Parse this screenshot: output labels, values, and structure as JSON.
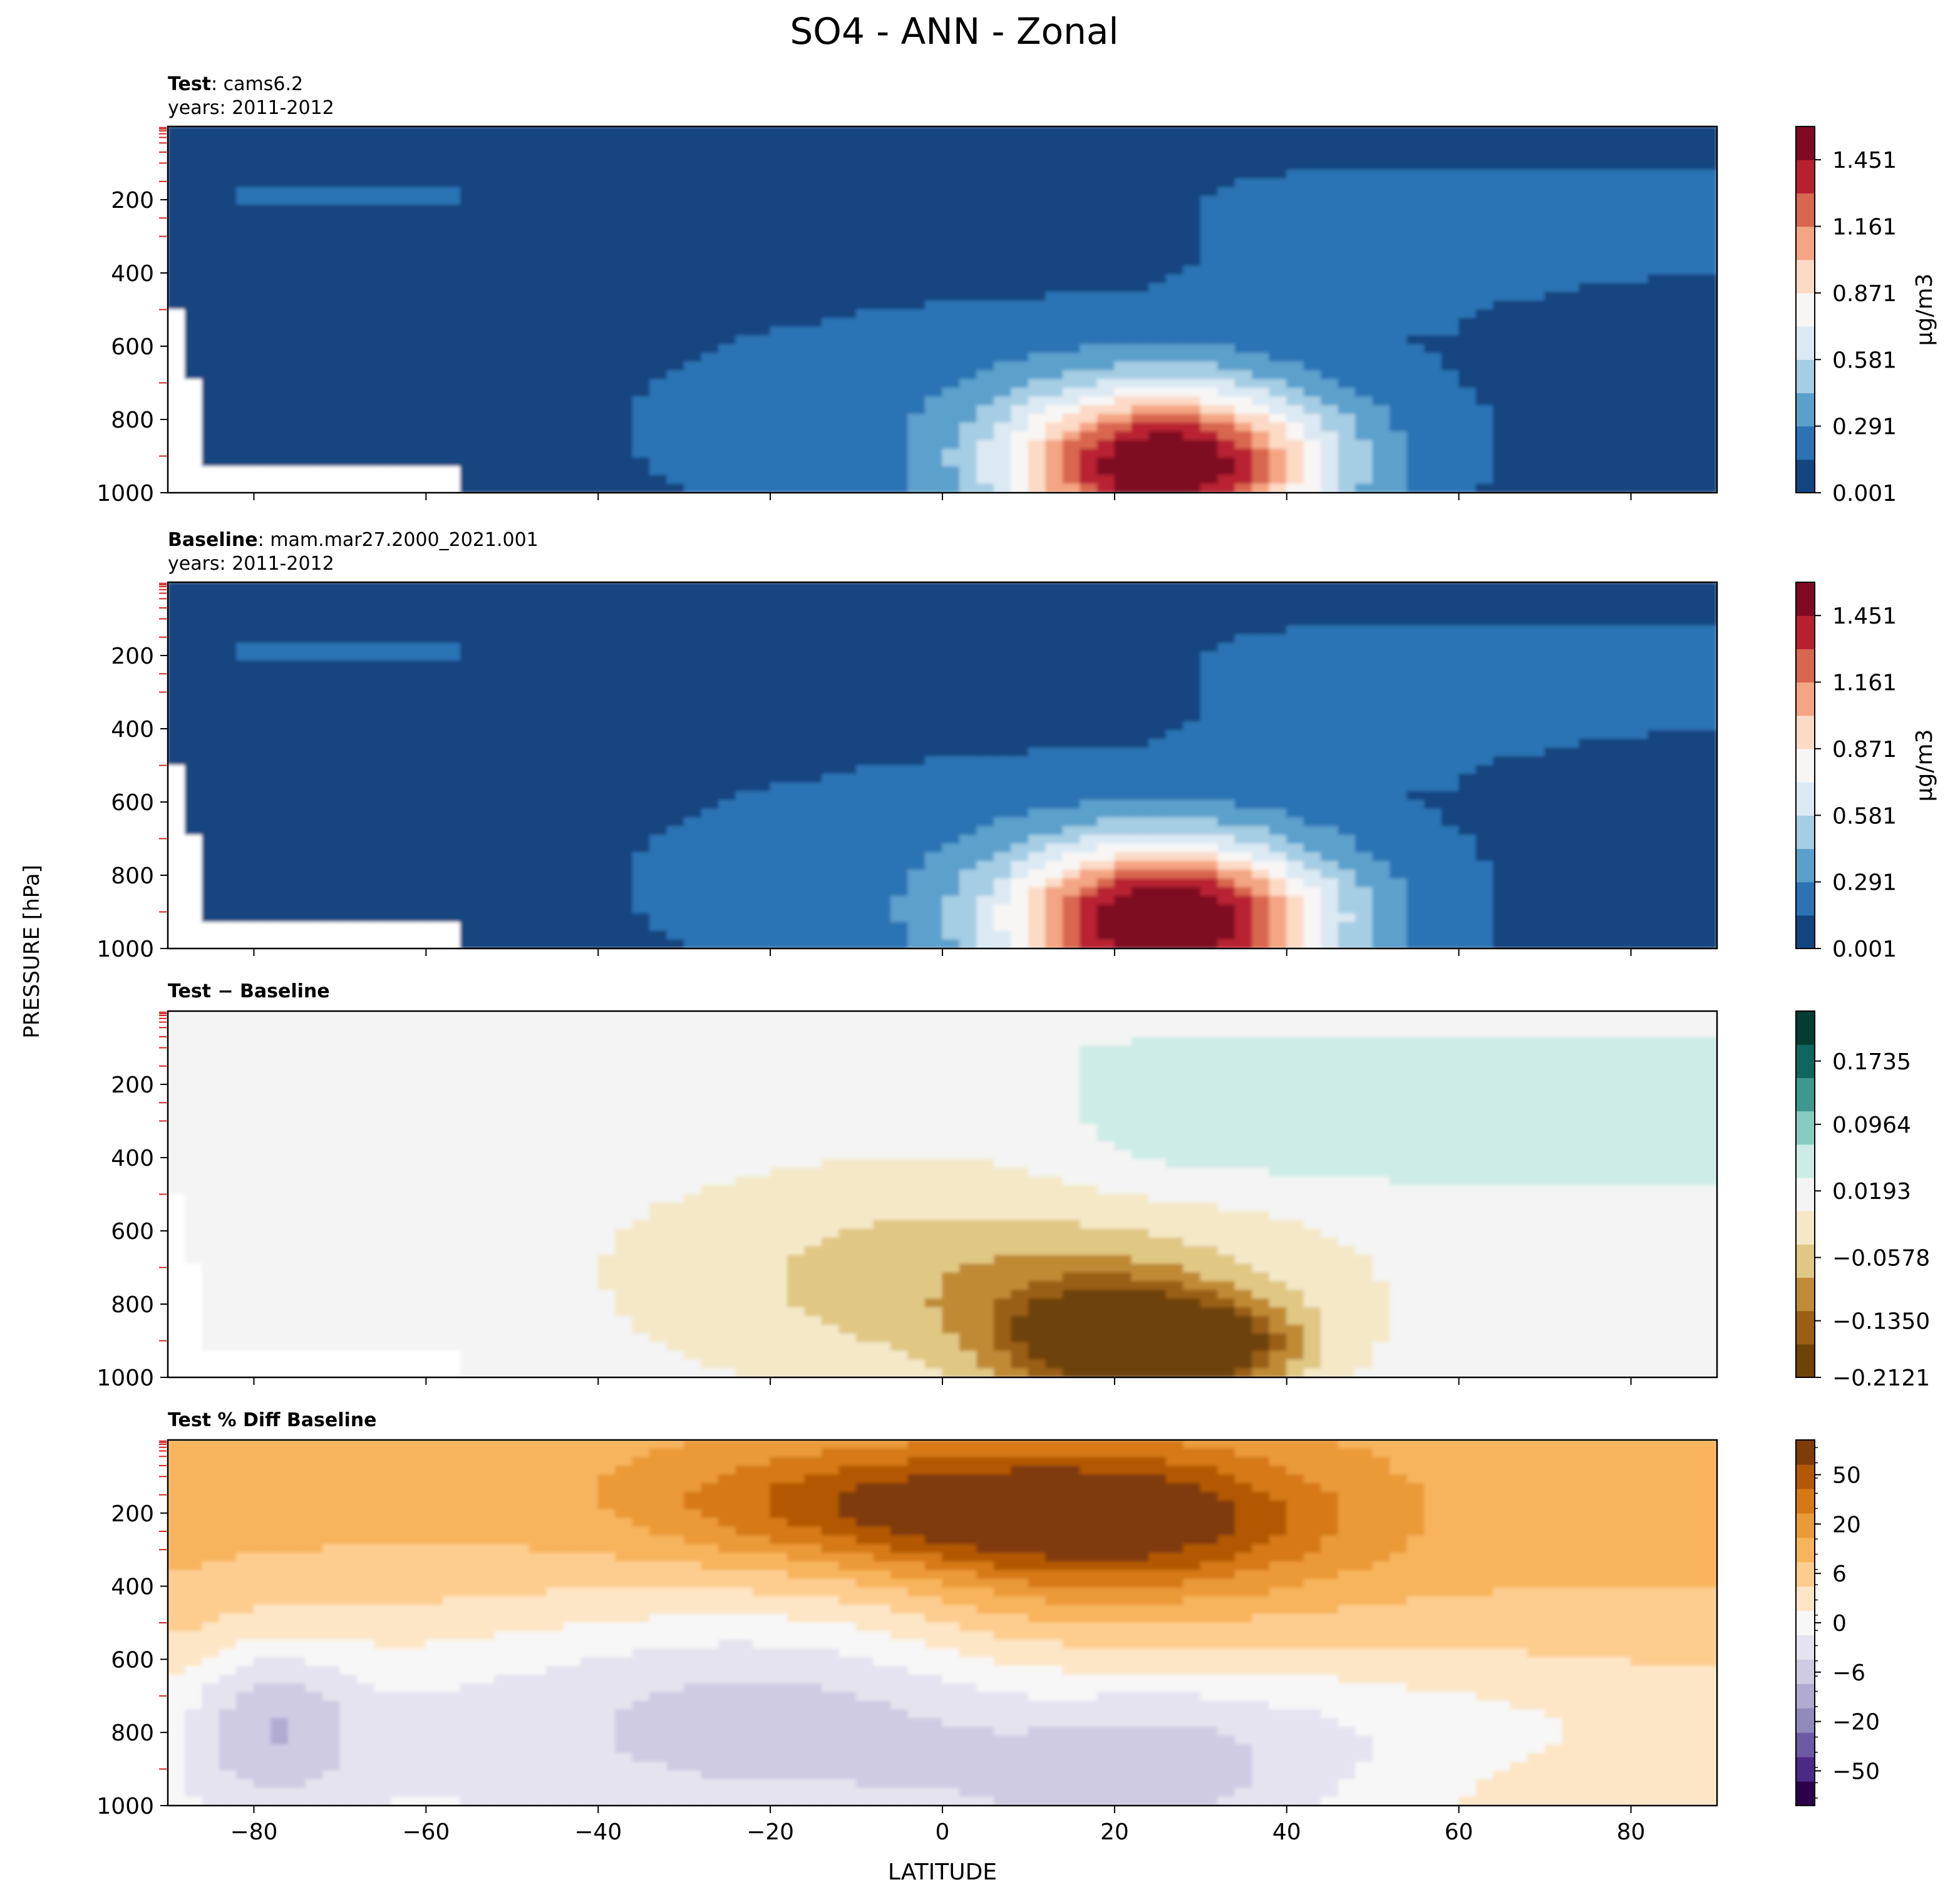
{
  "figure": {
    "title": "SO4 - ANN - Zonal",
    "xlabel": "LATITUDE",
    "ylabel": "PRESSURE [hPa]"
  },
  "panels": [
    {
      "id": "test",
      "title_bold": "Test",
      "title_rest": ": cams6.2",
      "subtitle": "years: 2011-2012",
      "colorbar_label": "μg/m3",
      "colorbar_ticks": [
        "1.451",
        "1.161",
        "0.871",
        "0.581",
        "0.291",
        "0.001"
      ],
      "colormap": "RdBu_r",
      "colors": [
        "#124580",
        "#2c73b4",
        "#5ba0cc",
        "#a5cde3",
        "#dbe9f3",
        "#f8f6f5",
        "#fcdac6",
        "#f4a583",
        "#d9664f",
        "#b82030",
        "#7f0a24"
      ]
    },
    {
      "id": "baseline",
      "title_bold": "Baseline",
      "title_rest": ": mam.mar27.2000_2021.001",
      "subtitle": "years: 2011-2012",
      "colorbar_label": "μg/m3",
      "colorbar_ticks": [
        "1.451",
        "1.161",
        "0.871",
        "0.581",
        "0.291",
        "0.001"
      ],
      "colormap": "RdBu_r",
      "colors": [
        "#124580",
        "#2c73b4",
        "#5ba0cc",
        "#a5cde3",
        "#dbe9f3",
        "#f8f6f5",
        "#fcdac6",
        "#f4a583",
        "#d9664f",
        "#b82030",
        "#7f0a24"
      ]
    },
    {
      "id": "diff",
      "title_bold": "Test − Baseline",
      "title_rest": "",
      "subtitle": "",
      "colorbar_label": "",
      "colorbar_ticks": [
        "0.1735",
        "0.0964",
        "0.0193",
        "−0.0578",
        "−0.1350",
        "−0.2121"
      ],
      "colormap": "BrBG",
      "colors": [
        "#6e4308",
        "#9a5f13",
        "#c08a36",
        "#e0c784",
        "#f4e8c7",
        "#f3f4f3",
        "#cdece6",
        "#86cdc0",
        "#3e988f",
        "#10665f",
        "#033d31"
      ]
    },
    {
      "id": "pctdiff",
      "title_bold": "Test % Diff Baseline",
      "title_rest": "",
      "subtitle": "",
      "colorbar_label": "",
      "colorbar_ticks": [
        "50",
        "20",
        "6",
        "0",
        "−6",
        "−20",
        "−50"
      ],
      "colormap": "PuOr_r",
      "colors": [
        "#2d004b",
        "#4b2a86",
        "#6d5aa4",
        "#9089bb",
        "#b1aad1",
        "#cfcbe3",
        "#e4e3ef",
        "#f7f7f7",
        "#fde6c6",
        "#fdcd90",
        "#f8b45c",
        "#eb9a38",
        "#d67915",
        "#b35806",
        "#7f3b08"
      ]
    }
  ],
  "chart_data": {
    "type": "contour",
    "x": {
      "label": "LATITUDE",
      "range": [
        -90,
        90
      ],
      "ticks": [
        "−80",
        "−60",
        "−40",
        "−20",
        "0",
        "20",
        "40",
        "60",
        "80"
      ]
    },
    "y": {
      "label": "PRESSURE [hPa]",
      "range": [
        1000,
        0
      ],
      "ticks": [
        "200",
        "400",
        "600",
        "800",
        "1000"
      ]
    },
    "fields": {
      "test": {
        "peak": {
          "lat": 25,
          "p": 920,
          "value": 1.52
        },
        "levels": [
          0.001,
          0.146,
          0.291,
          0.436,
          0.581,
          0.726,
          0.871,
          1.016,
          1.161,
          1.306,
          1.451,
          1.596
        ]
      },
      "baseline": {
        "peak": {
          "lat": 25,
          "p": 920,
          "value": 1.6
        },
        "levels": [
          0.001,
          0.146,
          0.291,
          0.436,
          0.581,
          0.726,
          0.871,
          1.016,
          1.161,
          1.306,
          1.451,
          1.596
        ]
      },
      "diff": {
        "range": [
          -0.2121,
          0.2121
        ],
        "min": {
          "lat": 20,
          "p": 900,
          "value": -0.19
        },
        "max_region": {
          "lat": [
            12,
            90
          ],
          "p": [
            100,
            550
          ],
          "value": 0.04
        }
      },
      "pctdiff": {
        "range": [
          -70,
          70
        ],
        "max_region": {
          "lat": 20,
          "p": 220,
          "value": 35
        },
        "min_region": {
          "lat": -20,
          "p": 700,
          "value": -12
        }
      }
    }
  }
}
